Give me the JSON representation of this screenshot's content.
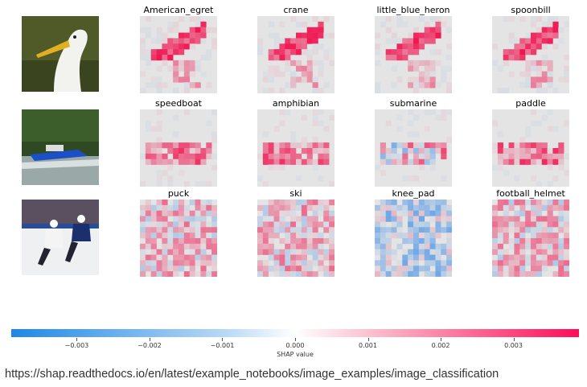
{
  "chart_data": {
    "type": "heatmap",
    "title": "",
    "rows": [
      {
        "image": "egret-photo",
        "classes": [
          "American_egret",
          "crane",
          "little_blue_heron",
          "spoonbill"
        ]
      },
      {
        "image": "speedboat-photo",
        "classes": [
          "speedboat",
          "amphibian",
          "submarine",
          "paddle"
        ]
      },
      {
        "image": "hockey-photo",
        "classes": [
          "puck",
          "ski",
          "knee_pad",
          "football_helmet"
        ]
      }
    ],
    "colorbar": {
      "label": "SHAP value",
      "range": [
        -0.0039,
        0.0039
      ],
      "ticks": [
        -0.003,
        -0.002,
        -0.001,
        0.0,
        0.001,
        0.002,
        0.003
      ],
      "tick_labels": [
        "−0.003",
        "−0.002",
        "−0.001",
        "0.000",
        "0.001",
        "0.002",
        "0.003"
      ],
      "negative_color": "#1e88e5",
      "positive_color": "#ff0d57"
    }
  },
  "source_text": "https://shap.readthedocs.io/en/latest/example_notebooks/image_examples/image_classification"
}
